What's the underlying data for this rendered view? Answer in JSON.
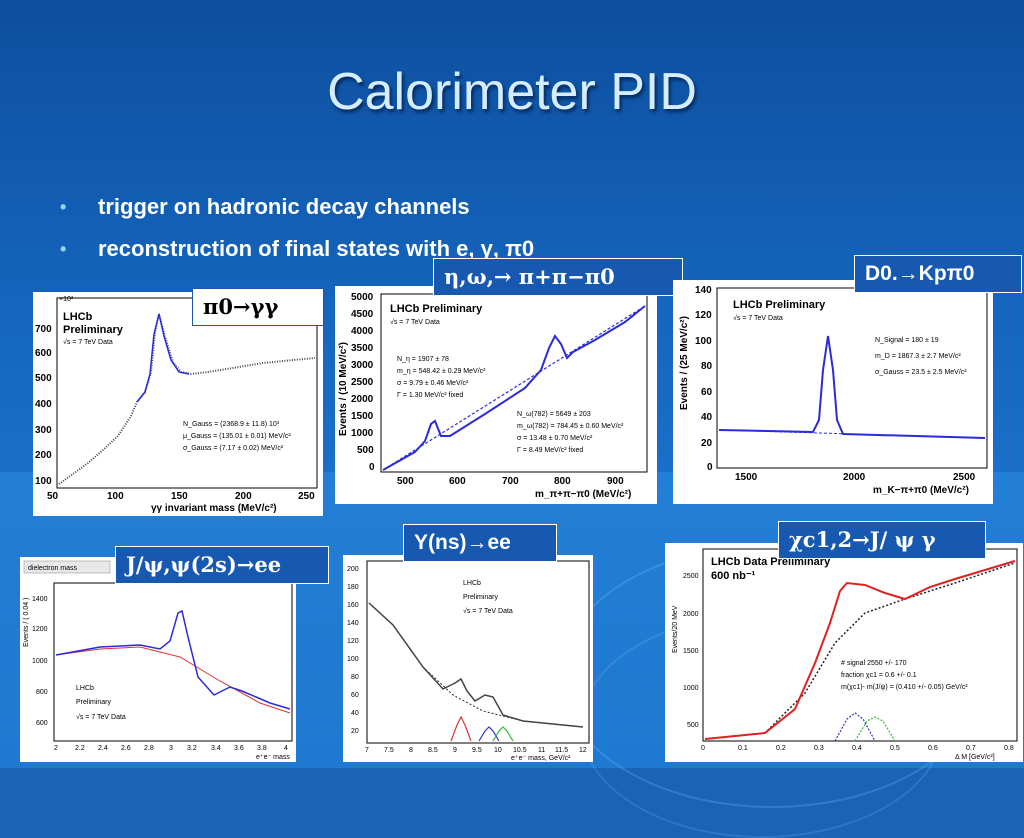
{
  "slide": {
    "title": "Calorimeter PID",
    "bullets": [
      "trigger on hadronic decay channels",
      "reconstruction of final states with e, γ, π0"
    ]
  },
  "labels": {
    "pi0": "π0→γγ",
    "eta": "η,ω,→ π+π−π0",
    "d0": "D0.→Kpπ0",
    "jpsi": "J/ψ,ψ(2s)→ee",
    "upsilon": "Υ(ns)→ee",
    "chic": "χc1,2→J/ ψ γ"
  },
  "plots": {
    "p1": {
      "info": [
        "LHCb",
        "Preliminary",
        "√s = 7 TeV Data"
      ],
      "scale": "×10³",
      "fit": [
        "N_Gauss = (2368.9 ± 11.8) 10³",
        "μ_Gauss = (135.01 ± 0.01) MeV/c²",
        "σ_Gauss = (7.17 ± 0.02) MeV/c²"
      ],
      "xticks": [
        "50",
        "100",
        "150",
        "200",
        "250"
      ],
      "yticks": [
        "700",
        "600",
        "500",
        "400",
        "300",
        "200",
        "100"
      ],
      "xlabel": "γγ invariant mass (MeV/c²)"
    },
    "p2": {
      "info": [
        "LHCb Preliminary",
        "√s = 7 TeV Data"
      ],
      "fit1": [
        "N_η = 1907 ± 78",
        "m_η = 548.42 ± 0.29 MeV/c²",
        "σ = 9.79 ± 0.46 MeV/c²",
        "Γ = 1.30 MeV/c² fixed"
      ],
      "fit2": [
        "N_ω(782) = 5649 ± 203",
        "m_ω(782) = 784.45 ± 0.60 MeV/c²",
        "σ = 13.48 ± 0.70 MeV/c²",
        "Γ = 8.49 MeV/c² fixed"
      ],
      "xticks": [
        "500",
        "600",
        "700",
        "800",
        "900"
      ],
      "yticks": [
        "5000",
        "4500",
        "4000",
        "3500",
        "3000",
        "2500",
        "2000",
        "1500",
        "1000",
        "500",
        "0"
      ],
      "ylabel": "Events / (10 MeV/c²)",
      "xlabel": "m_π+π−π0 (MeV/c²)"
    },
    "p3": {
      "info": [
        "LHCb Preliminary",
        "√s = 7 TeV Data"
      ],
      "fit": [
        "N_Signal = 180 ± 19",
        "m_D = 1867.3 ± 2.7 MeV/c²",
        "σ_Gauss = 23.5 ± 2.5 MeV/c²"
      ],
      "xticks": [
        "1500",
        "2000",
        "2500"
      ],
      "yticks": [
        "140",
        "120",
        "100",
        "80",
        "60",
        "40",
        "20",
        "0"
      ],
      "ylabel": "Events / (25 MeV/c²)",
      "xlabel": "m_K−π+π0 (MeV/c²)"
    },
    "p4": {
      "header": "dielectron mass",
      "info": [
        "LHCb",
        "Preliminary",
        "√s = 7 TeV Data"
      ],
      "xticks": [
        "2",
        "2.2",
        "2.4",
        "2.6",
        "2.8",
        "3",
        "3.2",
        "3.4",
        "3.6",
        "3.8",
        "4"
      ],
      "yticks": [
        "1400",
        "1200",
        "1000",
        "800",
        "600"
      ],
      "ylabel": "Events / ( 0.04 )",
      "xlabel": "e⁺e⁻ mass"
    },
    "p5": {
      "info": [
        "LHCb",
        "Preliminary",
        "√s = 7 TeV Data"
      ],
      "xticks": [
        "7",
        "7.5",
        "8",
        "8.5",
        "9",
        "9.5",
        "10",
        "10.5",
        "11",
        "11.5",
        "12"
      ],
      "yticks": [
        "200",
        "180",
        "160",
        "140",
        "120",
        "100",
        "80",
        "60",
        "40",
        "20"
      ],
      "xlabel": "e⁺e⁻ mass, GeV/c²"
    },
    "p6": {
      "info": [
        "LHCb Data Preliminary",
        "600 nb⁻¹"
      ],
      "fit": [
        "# signal 2550 +/- 170",
        "fraction χc1 = 0.6 +/- 0.1",
        "m(χc1)- m(J/ψ) = (0.410 +/- 0.05) GeV/c²"
      ],
      "xticks": [
        "0",
        "0.1",
        "0.2",
        "0.3",
        "0.4",
        "0.5",
        "0.6",
        "0.7",
        "0.8"
      ],
      "yticks": [
        "2500",
        "2000",
        "1500",
        "1000",
        "500"
      ],
      "ylabel": "Events/20 MeV",
      "xlabel": "Δ M [GeV/c²]"
    }
  }
}
